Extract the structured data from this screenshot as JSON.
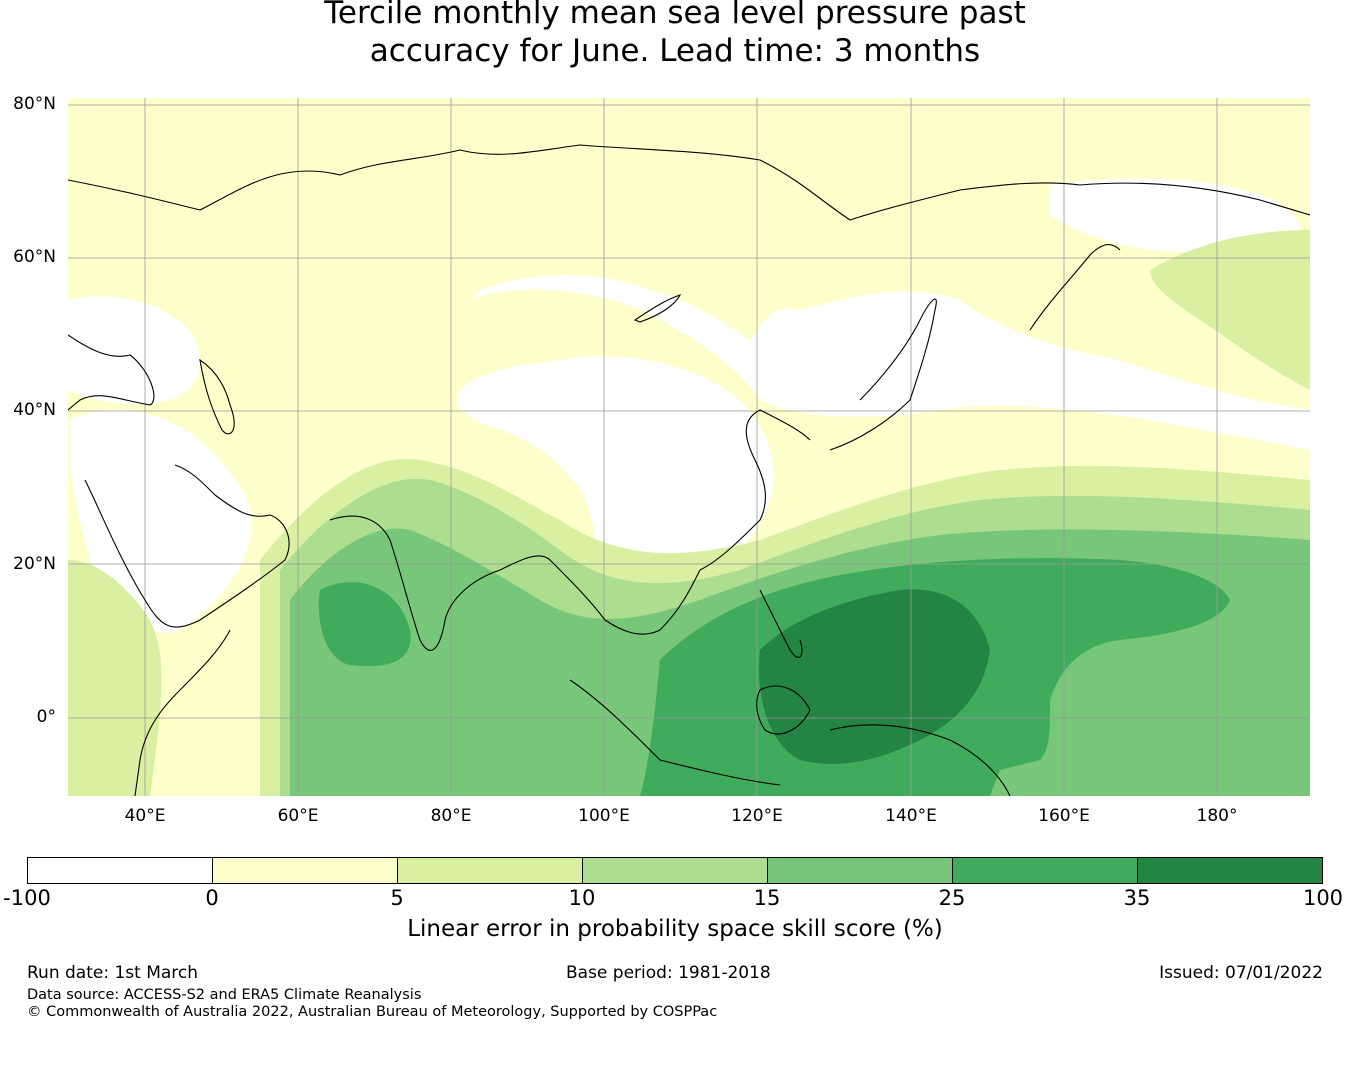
{
  "title": {
    "line1": "Tercile monthly mean sea level pressure past",
    "line2": "accuracy for June. Lead time: 3 months"
  },
  "map": {
    "lat_labels": [
      "80°N",
      "60°N",
      "40°N",
      "20°N",
      "0°"
    ],
    "lon_labels": [
      "40°E",
      "60°E",
      "80°E",
      "100°E",
      "120°E",
      "140°E",
      "160°E",
      "180°"
    ]
  },
  "colorbar": {
    "title": "Linear error in probability space skill score (%)",
    "ticks": [
      "-100",
      "0",
      "5",
      "10",
      "15",
      "25",
      "35",
      "100"
    ],
    "colors": [
      "#ffffff",
      "#ffffcc",
      "#d9f0a3",
      "#addd8e",
      "#78c679",
      "#41ab5d",
      "#238443"
    ]
  },
  "footer": {
    "run_date": "Run date: 1st March",
    "base_period": "Base period: 1981-2018",
    "issued": "Issued: 07/01/2022",
    "data_source": "Data source: ACCESS-S2 and ERA5 Climate Reanalysis",
    "copyright": "© Commonwealth of Australia 2022, Australian Bureau of Meteorology, Supported by COSPPac"
  }
}
